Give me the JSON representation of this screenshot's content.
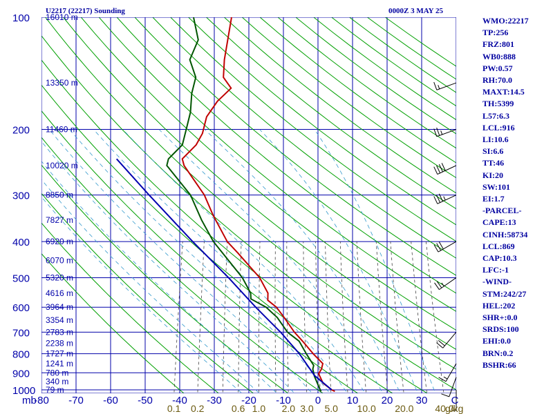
{
  "header": {
    "station": "U2217 (22217) Sounding",
    "time": "0000Z  3 MAY 25"
  },
  "colors": {
    "axis": "#0000aa",
    "green": "#00a000",
    "temp": "#c00000",
    "dewpoint": "#005500",
    "parcel": "#0000b0",
    "mixing": "#404040",
    "moist": "#3399cc",
    "mix_label": "#6b5a10",
    "index_text": "#0000a0"
  },
  "chart_data": {
    "type": "line",
    "chart_kind": "skew-t log-p sounding",
    "title": "U2217 (22217) Sounding",
    "xlabel": "C",
    "ylabel": "mb",
    "xlim": [
      -80,
      40
    ],
    "ylim": [
      1050,
      100
    ],
    "y_scale": "log",
    "grid": true,
    "pressure_ticks": [
      100,
      200,
      300,
      400,
      500,
      600,
      700,
      800,
      900,
      1000
    ],
    "temperature_ticks": [
      -80,
      -70,
      -60,
      -50,
      -40,
      -30,
      -20,
      -10,
      0,
      10,
      20,
      30
    ],
    "mixing_ratio_labels": [
      "0.1",
      "0.2",
      "0.6",
      "1.0",
      "2.0",
      "3.0",
      "5.0",
      "10.0",
      "20.0",
      "40.0"
    ],
    "mixing_ratio_unit": "g/kg",
    "height_labels": [
      {
        "p": 100,
        "text": "16010 m"
      },
      {
        "p": 150,
        "text": "13350 m"
      },
      {
        "p": 200,
        "text": "11460 m"
      },
      {
        "p": 250,
        "text": "10020 m"
      },
      {
        "p": 300,
        "text": "8850 m"
      },
      {
        "p": 350,
        "text": "7827 m"
      },
      {
        "p": 400,
        "text": "6920 m"
      },
      {
        "p": 450,
        "text": "6070 m"
      },
      {
        "p": 500,
        "text": "5320 m"
      },
      {
        "p": 550,
        "text": "4616 m"
      },
      {
        "p": 600,
        "text": "3964 m"
      },
      {
        "p": 650,
        "text": "3354 m"
      },
      {
        "p": 700,
        "text": "2783 m"
      },
      {
        "p": 750,
        "text": "2238 m"
      },
      {
        "p": 800,
        "text": "1727 m"
      },
      {
        "p": 850,
        "text": "1241 m"
      },
      {
        "p": 900,
        "text": "780 m"
      },
      {
        "p": 950,
        "text": "340 m"
      },
      {
        "p": 1000,
        "text": "79 m"
      }
    ],
    "series": [
      {
        "role": "temperature",
        "points": [
          [
            1010,
            5
          ],
          [
            1000,
            4
          ],
          [
            960,
            1
          ],
          [
            905,
            -1
          ],
          [
            880,
            -0.5
          ],
          [
            850,
            -0.5
          ],
          [
            800,
            -4
          ],
          [
            740,
            -8
          ],
          [
            700,
            -11
          ],
          [
            640,
            -15
          ],
          [
            600,
            -18
          ],
          [
            575,
            -21
          ],
          [
            550,
            -21.5
          ],
          [
            500,
            -25
          ],
          [
            430,
            -33
          ],
          [
            400,
            -37
          ],
          [
            340,
            -43
          ],
          [
            300,
            -47
          ],
          [
            250,
            -55
          ],
          [
            240,
            -56
          ],
          [
            220,
            -53
          ],
          [
            205,
            -52
          ],
          [
            185,
            -52
          ],
          [
            168,
            -50
          ],
          [
            155,
            -47
          ],
          [
            145,
            -50
          ],
          [
            130,
            -51
          ],
          [
            100,
            -52
          ]
        ]
      },
      {
        "role": "dewpoint",
        "points": [
          [
            1010,
            1
          ],
          [
            980,
            0
          ],
          [
            920,
            -2
          ],
          [
            880,
            -3
          ],
          [
            860,
            -3
          ],
          [
            800,
            -6
          ],
          [
            740,
            -9
          ],
          [
            700,
            -13
          ],
          [
            640,
            -17
          ],
          [
            600,
            -21
          ],
          [
            570,
            -26
          ],
          [
            550,
            -26.5
          ],
          [
            500,
            -30
          ],
          [
            400,
            -41
          ],
          [
            350,
            -46
          ],
          [
            300,
            -51
          ],
          [
            250,
            -60
          ],
          [
            240,
            -60
          ],
          [
            220,
            -57
          ],
          [
            200,
            -57
          ],
          [
            180,
            -57
          ],
          [
            160,
            -58
          ],
          [
            145,
            -58
          ],
          [
            130,
            -61
          ],
          [
            115,
            -60
          ],
          [
            100,
            -63
          ]
        ]
      },
      {
        "role": "parcel",
        "points": [
          [
            1000,
            4
          ],
          [
            916,
            -2
          ],
          [
            800,
            -8
          ],
          [
            700,
            -15
          ],
          [
            600,
            -24
          ],
          [
            500,
            -34
          ],
          [
            400,
            -47
          ],
          [
            300,
            -63
          ],
          [
            240,
            -75
          ]
        ]
      }
    ],
    "wind_barbs": [
      {
        "p": 150,
        "dir": 250,
        "spd": 15
      },
      {
        "p": 200,
        "dir": 250,
        "spd": 25
      },
      {
        "p": 250,
        "dir": 245,
        "spd": 40
      },
      {
        "p": 300,
        "dir": 245,
        "spd": 35
      },
      {
        "p": 400,
        "dir": 240,
        "spd": 30
      },
      {
        "p": 500,
        "dir": 235,
        "spd": 25
      },
      {
        "p": 700,
        "dir": 220,
        "spd": 20
      },
      {
        "p": 850,
        "dir": 210,
        "spd": 15
      },
      {
        "p": 925,
        "dir": 200,
        "spd": 10
      },
      {
        "p": 1000,
        "dir": 180,
        "spd": 5
      }
    ]
  },
  "indices": [
    "WMO:22217",
    "TP:256",
    "FRZ:801",
    "WB0:888",
    "PW:0.57",
    "RH:70.0",
    "MAXT:14.5",
    "TH:5399",
    "L57:6.3",
    "LCL:916",
    "LI:10.6",
    "SI:6.6",
    "TT:46",
    "KI:20",
    "SW:101",
    "EI:1.7",
    "-PARCEL-",
    "CAPE:13",
    "CINH:58734",
    "LCL:869",
    "CAP:10.3",
    "LFC:-1",
    "-WIND-",
    "STM:242/27",
    "HEL:202",
    "SHR+:0.0",
    "SRDS:100",
    "EHI:0.0",
    "BRN:0.2",
    "BSHR:66"
  ]
}
